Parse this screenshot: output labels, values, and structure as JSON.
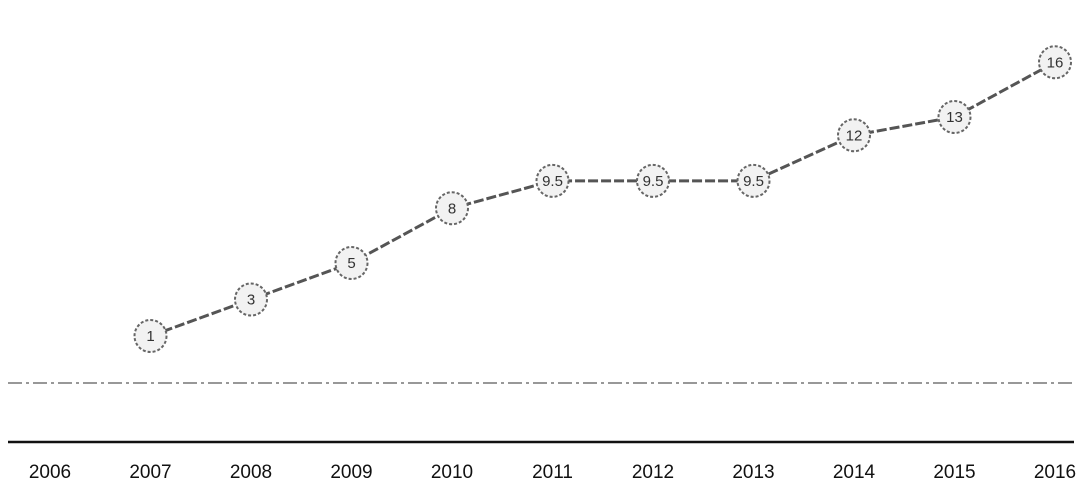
{
  "chart_data": {
    "type": "line",
    "title": "",
    "xlabel": "",
    "ylabel": "",
    "x": [
      "2006",
      "2007",
      "2008",
      "2009",
      "2010",
      "2011",
      "2012",
      "2013",
      "2014",
      "2015",
      "2016"
    ],
    "series": [
      {
        "values": [
          null,
          1,
          3,
          5,
          8,
          9.5,
          9.5,
          9.5,
          12,
          13,
          16
        ]
      }
    ],
    "grid": false,
    "legend": "none",
    "colors": {
      "line": "#555555",
      "marker_fill": "#f2f2f2",
      "marker_stroke": "#666666",
      "axis": "#111111",
      "reference_line": "#777777"
    }
  }
}
